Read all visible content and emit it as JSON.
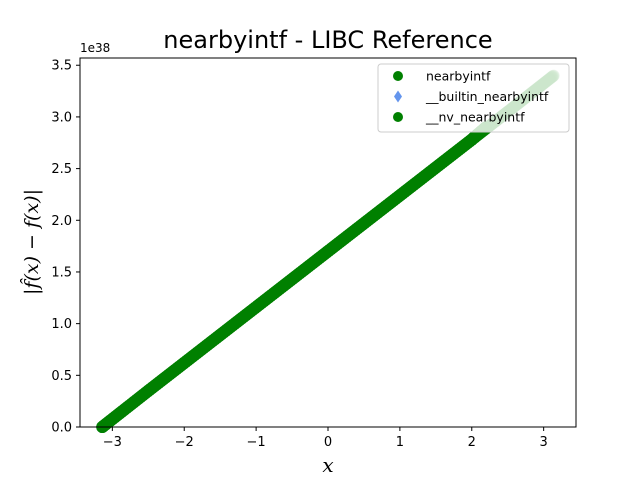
{
  "chart_data": {
    "type": "scatter",
    "title": "nearbyintf - LIBC Reference",
    "xlabel": "x",
    "ylabel": "|f̂(x) − f(x)|",
    "y_offset_text": "1e38",
    "xlim": [
      -3.45,
      3.45
    ],
    "ylim": [
      0,
      3.57
    ],
    "x_ticks": [
      -3,
      -2,
      -1,
      0,
      1,
      2,
      3
    ],
    "x_tick_labels": [
      "−3",
      "−2",
      "−1",
      "0",
      "1",
      "2",
      "3"
    ],
    "y_ticks": [
      0.0,
      0.5,
      1.0,
      1.5,
      2.0,
      2.5,
      3.0,
      3.5
    ],
    "y_tick_labels": [
      "0.0",
      "0.5",
      "1.0",
      "1.5",
      "2.0",
      "2.5",
      "3.0",
      "3.5"
    ],
    "grid": false,
    "legend_position": "top-right",
    "series": [
      {
        "name": "nearbyintf",
        "marker": "circle",
        "color": "#008000",
        "x": [
          -3.14,
          -2.5,
          -2.0,
          -1.5,
          -1.0,
          -0.5,
          0.0,
          0.5,
          1.0,
          1.5,
          2.0,
          2.2
        ],
        "y": [
          0.0,
          0.35,
          0.62,
          0.89,
          1.16,
          1.43,
          1.7,
          1.97,
          2.24,
          2.51,
          2.78,
          2.9
        ]
      },
      {
        "name": "__builtin_nearbyintf",
        "marker": "diamond",
        "color": "#6495ED",
        "x": [
          -3.14,
          -2.5,
          -2.0,
          -1.5,
          -1.0,
          -0.5,
          0.0,
          0.5,
          1.0,
          1.5,
          2.0,
          2.2
        ],
        "y": [
          0.0,
          0.35,
          0.62,
          0.89,
          1.16,
          1.43,
          1.7,
          1.97,
          2.24,
          2.51,
          2.78,
          2.9
        ]
      },
      {
        "name": "__nv_nearbyintf",
        "marker": "circle",
        "color": "#008000",
        "x": [
          -3.14,
          -2.5,
          -2.0,
          -1.5,
          -1.0,
          -0.5,
          0.0,
          0.5,
          1.0,
          1.5,
          2.0,
          2.5,
          3.14
        ],
        "y": [
          0.0,
          0.35,
          0.62,
          0.89,
          1.16,
          1.43,
          1.7,
          1.97,
          2.24,
          2.51,
          2.78,
          3.05,
          3.4
        ]
      }
    ]
  }
}
